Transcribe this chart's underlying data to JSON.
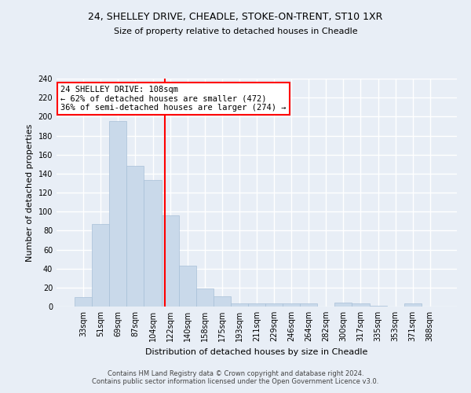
{
  "title_line1": "24, SHELLEY DRIVE, CHEADLE, STOKE-ON-TRENT, ST10 1XR",
  "title_line2": "Size of property relative to detached houses in Cheadle",
  "xlabel": "Distribution of detached houses by size in Cheadle",
  "ylabel": "Number of detached properties",
  "categories": [
    "33sqm",
    "51sqm",
    "69sqm",
    "87sqm",
    "104sqm",
    "122sqm",
    "140sqm",
    "158sqm",
    "175sqm",
    "193sqm",
    "211sqm",
    "229sqm",
    "246sqm",
    "264sqm",
    "282sqm",
    "300sqm",
    "317sqm",
    "335sqm",
    "353sqm",
    "371sqm",
    "388sqm"
  ],
  "values": [
    10,
    87,
    195,
    148,
    133,
    96,
    43,
    19,
    11,
    3,
    3,
    3,
    3,
    3,
    0,
    4,
    3,
    1,
    0,
    3,
    0
  ],
  "bar_color": "#c9d9ea",
  "bar_edge_color": "#a8c0d8",
  "vline_color": "red",
  "vline_x": 4.72,
  "annotation_text": "24 SHELLEY DRIVE: 108sqm\n← 62% of detached houses are smaller (472)\n36% of semi-detached houses are larger (274) →",
  "annotation_box_color": "white",
  "annotation_box_edge": "red",
  "ylim": [
    0,
    240
  ],
  "yticks": [
    0,
    20,
    40,
    60,
    80,
    100,
    120,
    140,
    160,
    180,
    200,
    220,
    240
  ],
  "footer": "Contains HM Land Registry data © Crown copyright and database right 2024.\nContains public sector information licensed under the Open Government Licence v3.0.",
  "bg_color": "#e8eef6",
  "plot_bg_color": "#e8eef6",
  "grid_color": "white"
}
